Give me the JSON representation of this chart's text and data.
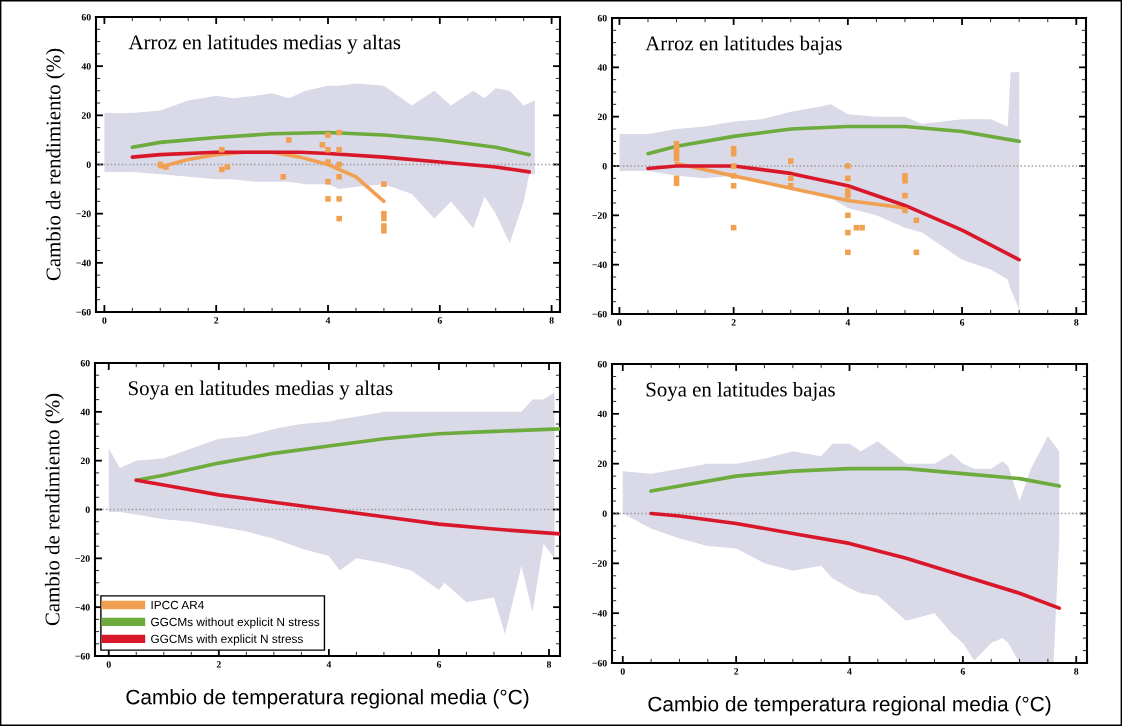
{
  "chart_data": [
    {
      "type": "line",
      "title": "Arroz en latitudes medias y altas",
      "ylabel": "Cambio de rendimiento (%)",
      "xlim": [
        -0.15,
        8.15
      ],
      "ylim": [
        -60,
        60
      ],
      "xticks": [
        0,
        2,
        4,
        6,
        8
      ],
      "yticks": [
        {
          "value": -60,
          "label": "−60"
        },
        {
          "value": -40,
          "label": "−40"
        },
        {
          "value": -20,
          "label": "−20"
        },
        0,
        20,
        40,
        60
      ],
      "grid": false,
      "legend": false,
      "ref_lines": [
        {
          "axis": "y",
          "value": 0,
          "color": "#999999",
          "line_style": "dotted"
        }
      ],
      "series": [
        {
          "type": "line",
          "color": "#d9d9e8",
          "x": [
            0,
            0.5,
            1,
            1.5,
            2,
            2.3,
            2.7,
            3,
            3.3,
            3.6,
            4,
            4.2,
            4.5,
            5,
            5.5,
            5.9,
            6.2,
            6.6,
            6.8,
            7,
            7.25,
            7.5,
            7.6,
            7.7
          ],
          "values": [
            null,
            null,
            null,
            null,
            null,
            null,
            null,
            null,
            null,
            null,
            null,
            null,
            null,
            null,
            null,
            null,
            null,
            null,
            null,
            null,
            null,
            null,
            null,
            null
          ],
          "upper": [
            21,
            21,
            22,
            26,
            28,
            27,
            28,
            29,
            27,
            30,
            32,
            32,
            33,
            32,
            24,
            30,
            24,
            30,
            27,
            31,
            30,
            24,
            25,
            26
          ],
          "lower": [
            -3,
            -3,
            -4,
            -5,
            -6,
            -6,
            -7,
            -7,
            -7,
            -8,
            -8,
            -10,
            -9,
            -8,
            -12,
            -22,
            -15,
            -26,
            -13,
            -20,
            -32,
            -15,
            -4,
            -4
          ]
        },
        {
          "color": "#f0a050",
          "x": [
            1,
            1.5,
            2,
            2.5,
            3,
            3.5,
            4,
            4.5,
            5
          ],
          "values": [
            -1,
            2,
            4,
            5,
            5,
            3,
            0,
            -5,
            -15
          ]
        },
        {
          "type": "scatter",
          "color": "#f0a050",
          "x": [
            1,
            1.1,
            2.1,
            2.1,
            2.2,
            3.2,
            3.3,
            3.9,
            4,
            4,
            4,
            4,
            4,
            4.2,
            4.2,
            4.2,
            4.2,
            4.2,
            4.2,
            5,
            5,
            5,
            5,
            5
          ],
          "values": [
            0,
            -1,
            6,
            -2,
            -1,
            -5,
            10,
            8,
            12,
            6,
            1,
            -7,
            -14,
            13,
            6,
            0,
            -5,
            -14,
            -22,
            -8,
            -20,
            -22,
            -25,
            -27
          ]
        },
        {
          "color": "#6cab3c",
          "x": [
            0.5,
            1,
            2,
            3,
            4,
            5,
            6,
            7,
            7.6
          ],
          "values": [
            7,
            9,
            11,
            12.5,
            13,
            12,
            10,
            7,
            4
          ]
        },
        {
          "color": "#d8182a",
          "x": [
            0.5,
            1,
            2,
            3,
            3.5,
            4,
            5,
            6,
            7,
            7.6
          ],
          "values": [
            3,
            4,
            5,
            5,
            5,
            4.5,
            3,
            1,
            -1,
            -3
          ]
        }
      ]
    },
    {
      "type": "line",
      "title": "Arroz en latitudes bajas",
      "xlim": [
        -0.13,
        8.17
      ],
      "ylim": [
        -60,
        60
      ],
      "xticks": [
        0,
        2,
        4,
        6,
        8
      ],
      "yticks": [
        {
          "value": -60,
          "label": "−60"
        },
        {
          "value": -40,
          "label": "−40"
        },
        {
          "value": -20,
          "label": "−20"
        },
        0,
        20,
        40,
        60
      ],
      "grid": false,
      "legend": false,
      "ref_lines": [
        {
          "axis": "y",
          "value": 0,
          "color": "#999999",
          "line_style": "dotted"
        }
      ],
      "series": [
        {
          "type": "line",
          "color": "#d9d9e8",
          "x": [
            0,
            0.5,
            1,
            1.5,
            2,
            2.5,
            3,
            3.5,
            3.7,
            4,
            4.5,
            5,
            5.3,
            6,
            6.5,
            6.8,
            6.85,
            7
          ],
          "values": [
            null,
            null,
            null,
            null,
            null,
            null,
            null,
            null,
            null,
            null,
            null,
            null,
            null,
            null,
            null,
            null,
            null,
            null
          ],
          "upper": [
            13,
            13,
            15,
            16,
            18,
            19,
            22,
            24,
            25,
            21,
            20,
            20,
            17,
            19,
            19,
            16,
            38,
            38
          ],
          "lower": [
            -2,
            -2,
            -4,
            -5,
            -4,
            -7,
            -9,
            -11,
            -13,
            -17,
            -20,
            -25,
            -27,
            -38,
            -42,
            -46,
            -50,
            -58
          ]
        },
        {
          "color": "#f0a050",
          "x": [
            1,
            2,
            3,
            4,
            5
          ],
          "values": [
            1,
            -4,
            -9,
            -14,
            -17
          ]
        },
        {
          "type": "scatter",
          "color": "#f0a050",
          "x": [
            1,
            1,
            1,
            1,
            1,
            1,
            2,
            2,
            2,
            2,
            2,
            2,
            3,
            3,
            3,
            4,
            4,
            4,
            4,
            4,
            4,
            4,
            4.15,
            4.25,
            5,
            5,
            5,
            5,
            5.2,
            5.2
          ],
          "values": [
            9,
            7,
            5,
            3,
            -5,
            -7,
            7,
            5,
            0,
            -4,
            -8,
            -25,
            2,
            -5,
            -8,
            0,
            -5,
            -10,
            -12,
            -20,
            -27,
            -35,
            -25,
            -25,
            -4,
            -6,
            -12,
            -18,
            -22,
            -35
          ]
        },
        {
          "color": "#6cab3c",
          "x": [
            0.5,
            1,
            2,
            3,
            4,
            5,
            6,
            7
          ],
          "values": [
            5,
            8,
            12,
            15,
            16,
            16,
            14,
            10
          ]
        },
        {
          "color": "#d8182a",
          "x": [
            0.5,
            1,
            2,
            3,
            4,
            5,
            6,
            7
          ],
          "values": [
            -1,
            0,
            0,
            -3,
            -8,
            -16,
            -26,
            -38
          ]
        }
      ]
    },
    {
      "type": "line",
      "title": "Soya en latitudes medias y altas",
      "ylabel": "Cambio de rendimiento (%)",
      "xlabel": "Cambio de temperatura regional media (°C)",
      "xlim": [
        -0.25,
        8.2
      ],
      "ylim": [
        -60,
        60
      ],
      "xticks": [
        0,
        2,
        4,
        6,
        8
      ],
      "yticks": [
        {
          "value": -60,
          "label": "−60"
        },
        {
          "value": -40,
          "label": "−40"
        },
        {
          "value": -20,
          "label": "−20"
        },
        0,
        20,
        40,
        60
      ],
      "grid": false,
      "legend": "bottom left",
      "ref_lines": [
        {
          "axis": "y",
          "value": 0,
          "color": "#999999",
          "line_style": "dotted"
        }
      ],
      "series": [
        {
          "type": "line",
          "color": "#d9d9e8",
          "x": [
            0,
            0.2,
            0.5,
            1,
            1.5,
            2,
            2.5,
            3,
            3.5,
            4,
            4.2,
            4.5,
            5,
            5.5,
            6,
            6.1,
            6.5,
            7,
            7.2,
            7.5,
            7.7,
            7.9,
            8.1
          ],
          "values": [
            null,
            null,
            null,
            null,
            null,
            null,
            null,
            null,
            null,
            null,
            null,
            null,
            null,
            null,
            null,
            null,
            null,
            null,
            null,
            null,
            null,
            null,
            null
          ],
          "upper": [
            25,
            17,
            20,
            21,
            25,
            29,
            30,
            33,
            35,
            36,
            37,
            38,
            40,
            40,
            40,
            40,
            40,
            40,
            40,
            40,
            45,
            45,
            48
          ],
          "lower": [
            -1,
            -1,
            -2,
            -4,
            -5,
            -7,
            -9,
            -12,
            -16,
            -19,
            -25,
            -20,
            -22,
            -25,
            -33,
            -30,
            -38,
            -36,
            -51,
            -23,
            -42,
            -14,
            -20
          ]
        },
        {
          "name": "IPCC AR4",
          "color": "#f0a050"
        },
        {
          "name": "GGCMs without explicit N stress",
          "color": "#6cab3c",
          "x": [
            0.5,
            1,
            2,
            3,
            4,
            5,
            6,
            7,
            8.2
          ],
          "values": [
            12,
            14,
            19,
            23,
            26,
            29,
            31,
            32,
            33
          ]
        },
        {
          "name": "GGCMs with explicit N stress",
          "color": "#d8182a",
          "x": [
            0.5,
            1,
            2,
            3,
            4,
            5,
            6,
            7,
            8.2
          ],
          "values": [
            12,
            10,
            6,
            3,
            0,
            -3,
            -6,
            -8,
            -10
          ]
        }
      ]
    },
    {
      "type": "line",
      "title": "Soya en latitudes bajas",
      "xlabel": "Cambio de temperatura regional media (°C)",
      "xlim": [
        -0.19,
        8.19
      ],
      "ylim": [
        -60,
        60
      ],
      "xticks": [
        0,
        2,
        4,
        6,
        8
      ],
      "yticks": [
        {
          "value": -60,
          "label": "−60"
        },
        {
          "value": -40,
          "label": "−40"
        },
        {
          "value": -20,
          "label": "−20"
        },
        0,
        20,
        40,
        60
      ],
      "grid": false,
      "legend": false,
      "ref_lines": [
        {
          "axis": "y",
          "value": 0,
          "color": "#999999",
          "line_style": "dotted"
        }
      ],
      "series": [
        {
          "type": "line",
          "color": "#d9d9e8",
          "x": [
            0,
            0.5,
            1,
            1.5,
            2,
            2.5,
            3,
            3.5,
            3.7,
            4,
            4.2,
            4.5,
            5,
            5.5,
            5.8,
            6,
            6.2,
            6.5,
            6.7,
            6.8,
            7,
            7.2,
            7.5,
            7.6,
            7.7
          ],
          "values": [
            null,
            null,
            null,
            null,
            null,
            null,
            null,
            null,
            null,
            null,
            null,
            null,
            null,
            null,
            null,
            null,
            null,
            null,
            null,
            null,
            null,
            null,
            null,
            null,
            null
          ],
          "upper": [
            17,
            16,
            18,
            20,
            20,
            22,
            25,
            23,
            28,
            28,
            25,
            29,
            20,
            20,
            24,
            20,
            18,
            18,
            21,
            19,
            5,
            18,
            31,
            28,
            25
          ],
          "lower": [
            0,
            -6,
            -10,
            -13,
            -14,
            -20,
            -23,
            -21,
            -26,
            -30,
            -32,
            -33,
            -43,
            -40,
            -48,
            -52,
            -59,
            -52,
            -50,
            -52,
            -60,
            -60,
            -60,
            -60,
            -10
          ]
        },
        {
          "color": "#6cab3c",
          "x": [
            0.5,
            1,
            2,
            3,
            4,
            5,
            6,
            7,
            7.7
          ],
          "values": [
            9,
            11,
            15,
            17,
            18,
            18,
            16,
            14,
            11
          ]
        },
        {
          "color": "#d8182a",
          "x": [
            0.5,
            1,
            2,
            3,
            4,
            5,
            6,
            7,
            7.7
          ],
          "values": [
            0,
            -1,
            -4,
            -8,
            -12,
            -18,
            -25,
            -32,
            -38
          ]
        }
      ]
    }
  ]
}
